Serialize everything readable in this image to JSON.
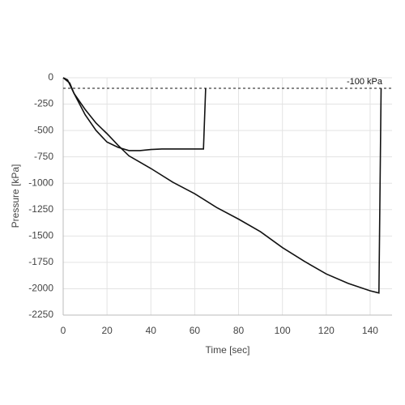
{
  "chart_data": {
    "type": "line",
    "xlabel": "Time [sec]",
    "ylabel": "Pressure [kPa]",
    "xlim": [
      0,
      150
    ],
    "ylim": [
      -2250,
      0
    ],
    "xticks": [
      0,
      20,
      40,
      60,
      80,
      100,
      120,
      140
    ],
    "yticks": [
      0,
      -250,
      -500,
      -750,
      -1000,
      -1250,
      -1500,
      -1750,
      -2000,
      -2250
    ],
    "grid": true,
    "reference_line": {
      "value": -100,
      "label": "-100 kPa"
    },
    "series": [
      {
        "color": "#111111",
        "x": [
          0,
          2,
          5,
          10,
          15,
          20,
          25,
          30,
          35,
          40,
          45,
          55,
          64,
          65
        ],
        "values": [
          0,
          -20,
          -150,
          -350,
          -500,
          -610,
          -660,
          -690,
          -690,
          -680,
          -675,
          -675,
          -675,
          -100
        ]
      },
      {
        "color": "#111111",
        "x": [
          0,
          3,
          5,
          10,
          15,
          20,
          25,
          30,
          35,
          40,
          50,
          60,
          70,
          80,
          90,
          100,
          110,
          120,
          130,
          140,
          144,
          145
        ],
        "values": [
          0,
          -50,
          -150,
          -300,
          -430,
          -530,
          -640,
          -740,
          -800,
          -860,
          -990,
          -1100,
          -1230,
          -1340,
          -1460,
          -1610,
          -1740,
          -1860,
          -1950,
          -2020,
          -2040,
          -100
        ]
      }
    ]
  }
}
